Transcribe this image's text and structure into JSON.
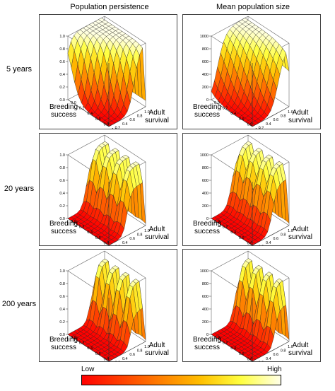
{
  "column_titles": [
    "Population persistence",
    "Mean population size"
  ],
  "row_titles": [
    "5 years",
    "20 years",
    "200 years"
  ],
  "axis_labels": {
    "x": [
      "Breeding",
      "success"
    ],
    "y": [
      "Adult",
      "survival"
    ]
  },
  "legend": {
    "low": "Low",
    "high": "High"
  },
  "chart_data": [
    {
      "type": "surface",
      "panel": "persistence-5y",
      "zlim": [
        0,
        1.0
      ],
      "zticks": [
        "0.0",
        "0.2",
        "0.4",
        "0.6",
        "0.8",
        "1.0"
      ],
      "xticks": [
        "0.0",
        "0.2",
        "0.4",
        "0.6",
        "0.8",
        "1.0"
      ],
      "yticks": [
        "0.0",
        "0.2",
        "0.4",
        "0.6",
        "0.8",
        "1.0"
      ]
    },
    {
      "type": "surface",
      "panel": "size-5y",
      "zlim": [
        0,
        1000
      ],
      "zticks": [
        "0",
        "200",
        "400",
        "600",
        "800",
        "1000"
      ],
      "xticks": [
        "0.0",
        "0.2",
        "0.4",
        "0.6",
        "0.8",
        "1.0"
      ],
      "yticks": [
        "0.0",
        "0.2",
        "0.4",
        "0.6",
        "0.8",
        "1.0"
      ]
    },
    {
      "type": "surface",
      "panel": "persistence-20y",
      "zlim": [
        0,
        1.0
      ],
      "zticks": [
        "0.0",
        "0.2",
        "0.4",
        "0.6",
        "0.8",
        "1.0"
      ],
      "xticks": [
        "0.0",
        "0.2",
        "0.4",
        "0.6",
        "0.8",
        "1.0"
      ],
      "yticks": [
        "0.0",
        "0.2",
        "0.4",
        "0.6",
        "0.8",
        "1.0"
      ]
    },
    {
      "type": "surface",
      "panel": "size-20y",
      "zlim": [
        0,
        1000
      ],
      "zticks": [
        "0",
        "200",
        "400",
        "600",
        "800",
        "1000"
      ],
      "xticks": [
        "0.0",
        "0.2",
        "0.4",
        "0.6",
        "0.8",
        "1.0"
      ],
      "yticks": [
        "0.0",
        "0.2",
        "0.4",
        "0.6",
        "0.8",
        "1.0"
      ]
    },
    {
      "type": "surface",
      "panel": "persistence-200y",
      "zlim": [
        0,
        1.0
      ],
      "zticks": [
        "0.0",
        "0.2",
        "0.4",
        "0.6",
        "0.8",
        "1.0"
      ],
      "xticks": [
        "0.0",
        "0.2",
        "0.4",
        "0.6",
        "0.8",
        "1.0"
      ],
      "yticks": [
        "0.0",
        "0.2",
        "0.4",
        "0.6",
        "0.8",
        "1.0"
      ]
    },
    {
      "type": "surface",
      "panel": "size-200y",
      "zlim": [
        0,
        1000
      ],
      "zticks": [
        "0",
        "200",
        "400",
        "600",
        "800",
        "1000"
      ],
      "xticks": [
        "0.0",
        "0.2",
        "0.4",
        "0.6",
        "0.8",
        "1.0"
      ],
      "yticks": [
        "0.0",
        "0.2",
        "0.4",
        "0.6",
        "0.8",
        "1.0"
      ]
    }
  ]
}
